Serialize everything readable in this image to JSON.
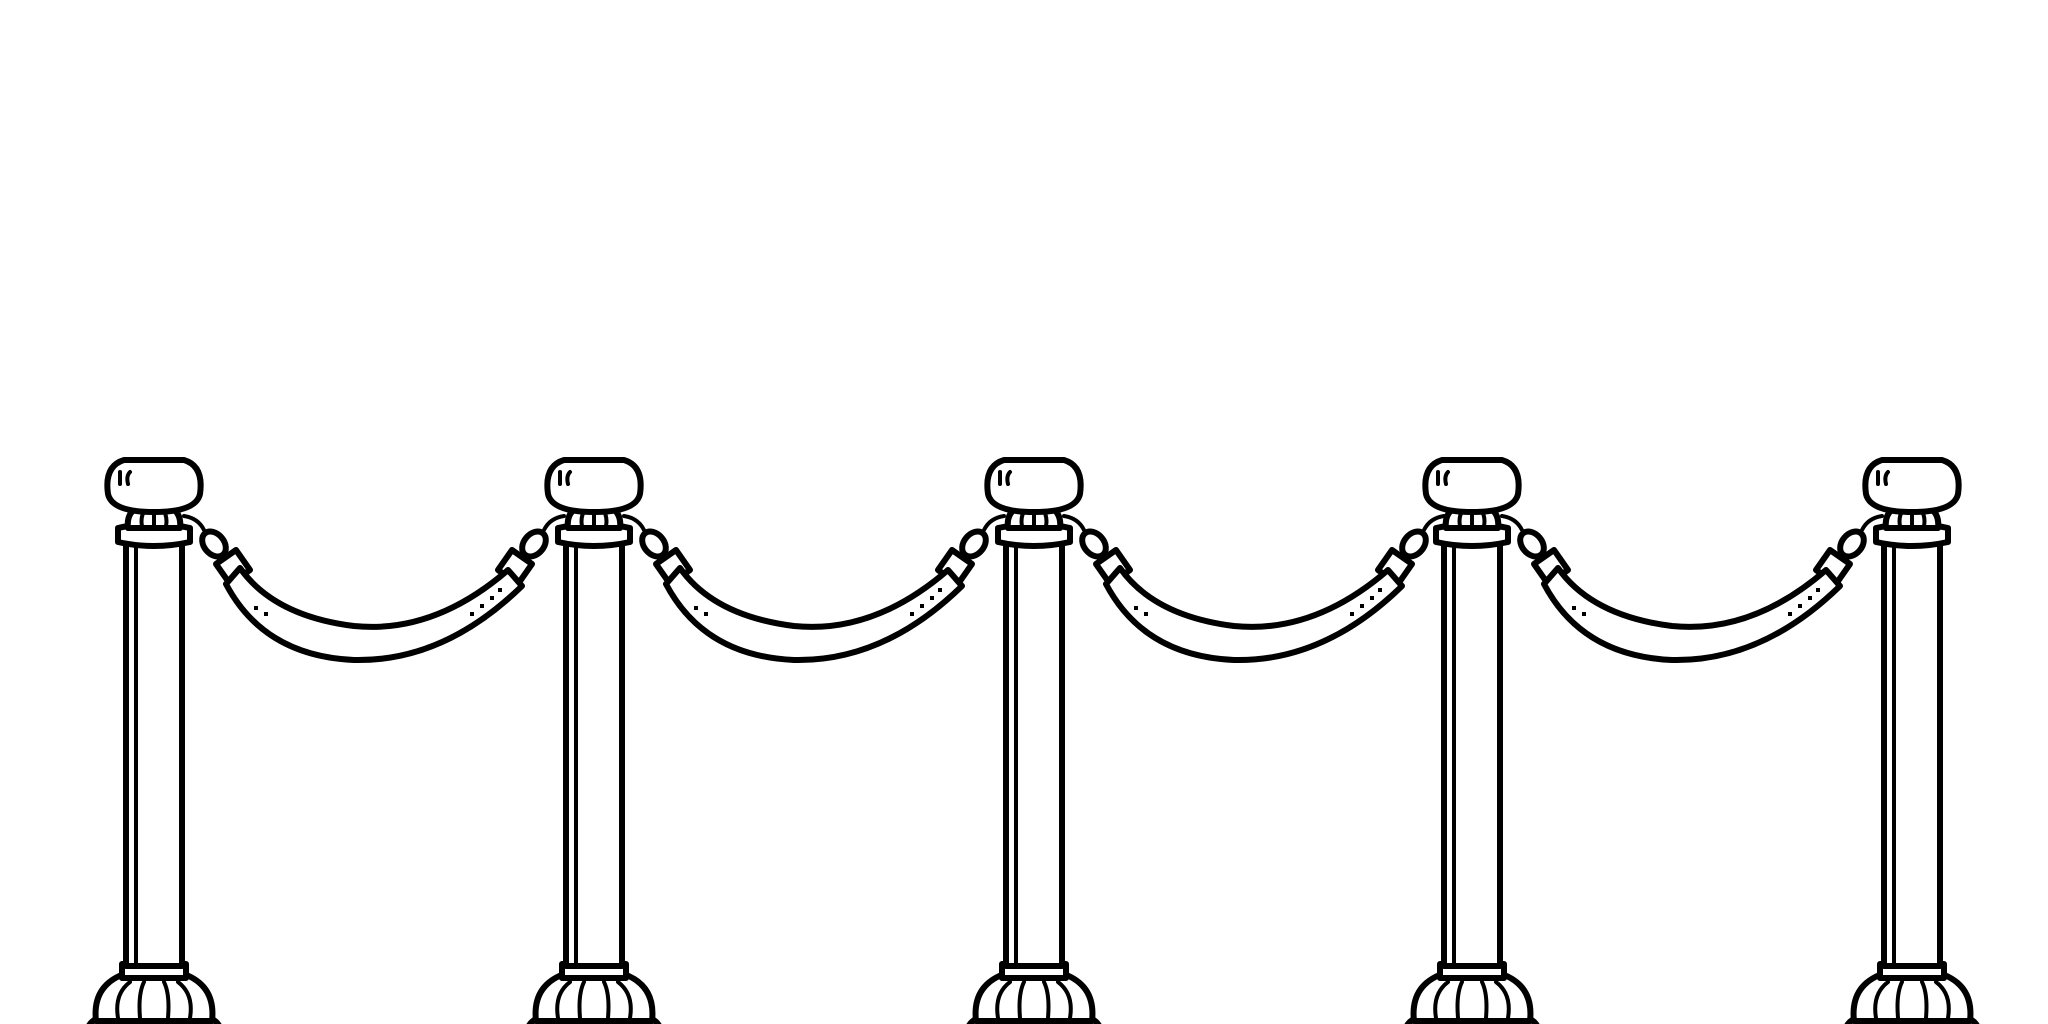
{
  "scene": {
    "subject": "stanchion-barrier",
    "colors": {
      "background": "#ffffff",
      "line": "#000000"
    },
    "post_count": 5,
    "rope_count": 4
  }
}
